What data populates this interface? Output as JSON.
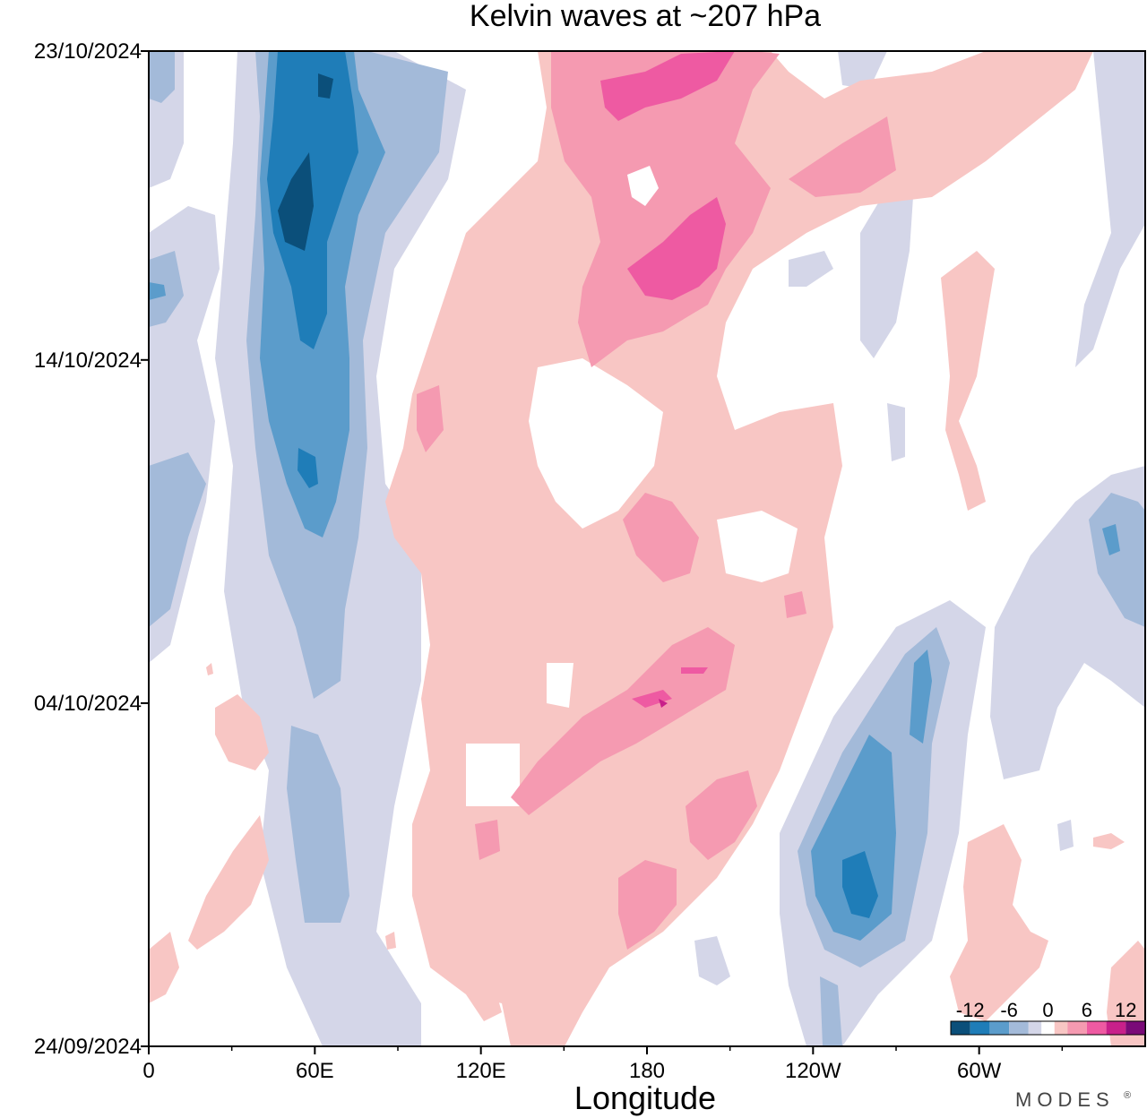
{
  "chart_data": {
    "type": "heatmap",
    "title": "Kelvin waves at ~207 hPa",
    "xlabel": "Longitude",
    "ylabel": "",
    "x_ticks": [
      "0",
      "60E",
      "120E",
      "180",
      "120W",
      "60W"
    ],
    "x_tick_values": [
      0,
      60,
      120,
      180,
      240,
      300
    ],
    "xlim": [
      0,
      360
    ],
    "y_ticks": [
      "24/09/2024",
      "04/10/2024",
      "14/10/2024",
      "23/10/2024"
    ],
    "y_tick_values": [
      0,
      10,
      20,
      29
    ],
    "ylim": [
      0,
      29
    ],
    "colorbar": {
      "tick_labels": [
        "-12",
        "-6",
        "0",
        "6",
        "12"
      ],
      "tick_values": [
        -12,
        -6,
        0,
        6,
        12
      ],
      "levels": [
        -15,
        -12,
        -9,
        -6,
        -3,
        -1,
        1,
        3,
        6,
        9,
        12,
        15
      ],
      "colors": [
        "#0b4f7a",
        "#1f7db8",
        "#5b9ccb",
        "#a3bad9",
        "#d4d6e8",
        "#ffffff",
        "#f8c6c4",
        "#f59ab1",
        "#ee5aa2",
        "#c8208a",
        "#7a0a78"
      ],
      "placement": "bottom-right"
    },
    "anomaly_features": [
      {
        "sign": "negative",
        "peak": -12,
        "lon_range": [
          40,
          75
        ],
        "days": [
          0,
          29
        ]
      },
      {
        "sign": "negative",
        "peak": -9,
        "lon_range": [
          0,
          20
        ],
        "days": [
          12,
          29
        ]
      },
      {
        "sign": "negative",
        "peak": -12,
        "lon_range": [
          230,
          280
        ],
        "days": [
          0,
          13
        ]
      },
      {
        "sign": "negative",
        "peak": -6,
        "lon_range": [
          340,
          360
        ],
        "days": [
          9,
          16
        ]
      },
      {
        "sign": "positive",
        "peak": 9,
        "lon_range": [
          140,
          240
        ],
        "days": [
          18,
          29
        ]
      },
      {
        "sign": "positive",
        "peak": 9,
        "lon_range": [
          110,
          210
        ],
        "days": [
          3,
          12
        ]
      },
      {
        "sign": "positive",
        "peak": 6,
        "lon_range": [
          170,
          200
        ],
        "days": [
          1,
          6
        ]
      }
    ]
  },
  "branding": {
    "text": "MODES",
    "mark": "®"
  }
}
